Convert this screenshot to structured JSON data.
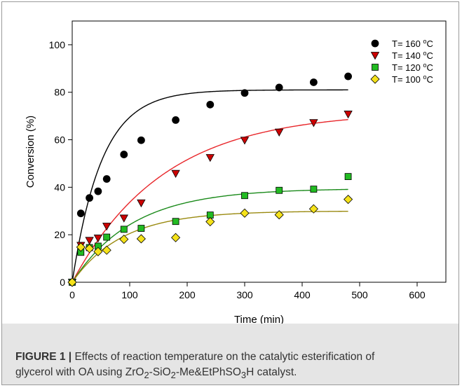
{
  "figure": {
    "caption_label": "FIGURE 1 |",
    "caption_line1": " Effects of reaction temperature on the catalytic esterification of",
    "caption_line2_pre": "glycerol with OA using ZrO",
    "sub_2a": "2",
    "caption_line2_mid1": "-SiO",
    "sub_2b": "2",
    "caption_line2_mid2": "-Me&EtPhSO",
    "sub_3": "3",
    "caption_line2_post": "H catalyst."
  },
  "chart_data": {
    "type": "scatter",
    "title": "",
    "xlabel": "Time (min)",
    "ylabel": "Conversion (%)",
    "xlim": [
      0,
      650
    ],
    "ylim": [
      0,
      110
    ],
    "xticks": [
      0,
      100,
      200,
      300,
      400,
      500,
      600
    ],
    "yticks": [
      0,
      20,
      40,
      60,
      80,
      100
    ],
    "grid": false,
    "legend_position": "top-right",
    "series": [
      {
        "name": "T= 160 °C",
        "name_base": "T= 160 ",
        "name_sup": "o",
        "name_unit": "C",
        "marker": "circle",
        "color": "#000000",
        "curve_color": "#000000",
        "x": [
          0,
          15,
          30,
          45,
          60,
          90,
          120,
          180,
          240,
          300,
          360,
          420,
          480
        ],
        "y": [
          0,
          29,
          35.5,
          38.3,
          43.5,
          53.8,
          59.8,
          68.3,
          74.8,
          79.7,
          82,
          84.2,
          86.7
        ],
        "fit": {
          "amplitude": 81,
          "rate": 0.0195
        }
      },
      {
        "name": "T= 140 °C",
        "name_base": "T= 140 ",
        "name_sup": "o",
        "name_unit": "C",
        "marker": "triangle-down",
        "color": "#cc0000",
        "curve_color": "#e8262a",
        "x": [
          0,
          15,
          30,
          45,
          60,
          90,
          120,
          180,
          240,
          300,
          360,
          420,
          480
        ],
        "y": [
          0,
          15.5,
          17.6,
          18.6,
          23.6,
          27,
          33.4,
          45.8,
          52.5,
          59.8,
          63.2,
          67.2,
          70.8
        ],
        "fit": {
          "amplitude": 72,
          "rate": 0.0063
        }
      },
      {
        "name": "T= 120 °C",
        "name_base": "T= 120 ",
        "name_sup": "o",
        "name_unit": "C",
        "marker": "square",
        "color": "#22bb22",
        "curve_color": "#1a8a1a",
        "x": [
          0,
          15,
          30,
          45,
          60,
          90,
          120,
          180,
          240,
          300,
          360,
          420,
          480
        ],
        "y": [
          0,
          12.6,
          14.6,
          15.2,
          19,
          22.3,
          22.7,
          25.6,
          28.3,
          36.5,
          38.7,
          39.2,
          44.5
        ],
        "fit": {
          "amplitude": 39.5,
          "rate": 0.0095
        }
      },
      {
        "name": "T= 100 °C",
        "name_base": "T= 100 ",
        "name_sup": "o",
        "name_unit": "C",
        "marker": "diamond",
        "color": "#f5e21a",
        "curve_color": "#9a8a10",
        "x": [
          0,
          15,
          30,
          45,
          60,
          90,
          120,
          180,
          240,
          300,
          360,
          420,
          480
        ],
        "y": [
          0,
          14.8,
          14.2,
          12.9,
          13.5,
          18.1,
          18.3,
          18.8,
          25.5,
          29.1,
          28.4,
          30.9,
          34.9
        ],
        "fit": {
          "amplitude": 30,
          "rate": 0.0115
        }
      }
    ]
  }
}
